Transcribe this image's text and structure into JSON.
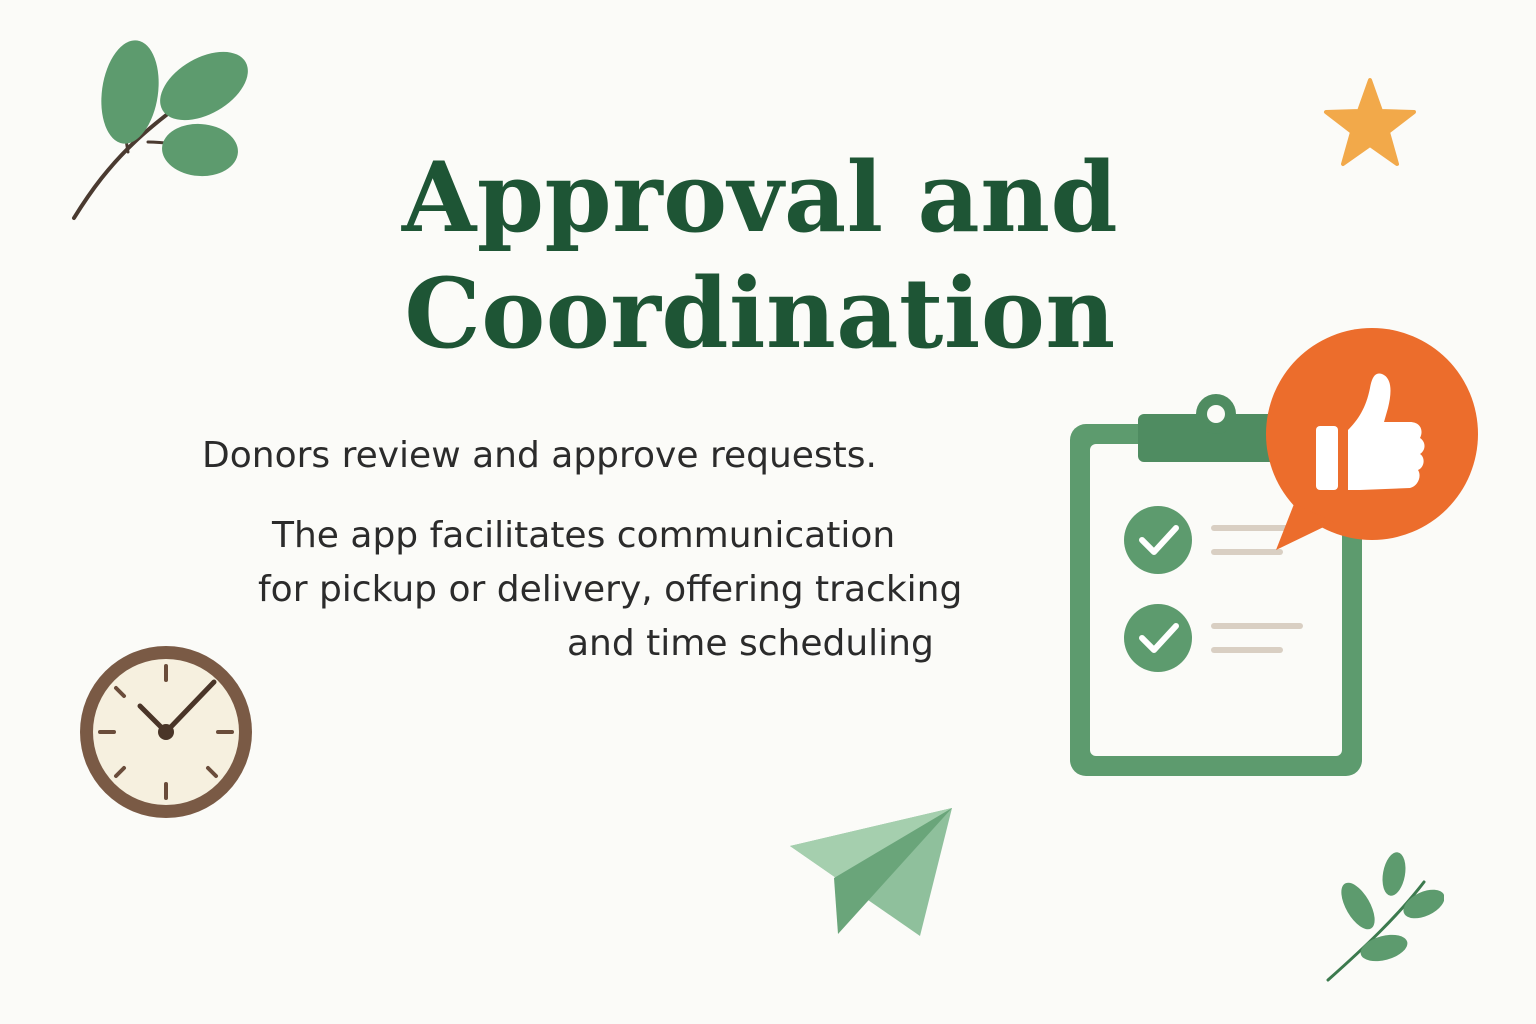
{
  "title": {
    "line1": "Approval and",
    "line2": "Coordination"
  },
  "subtitle": "Donors review and approve requests.",
  "description": {
    "line1": "The app facilitates communication",
    "line2": "for pickup or delivery, offering tracking",
    "line3": "and time scheduling"
  },
  "icons": {
    "top_left": "leaf-branch-icon",
    "top_right": "star-icon",
    "left_middle": "clock-icon",
    "bottom_center": "paper-plane-icon",
    "bottom_right": "leaf-sprig-icon",
    "right_main": "clipboard-checklist-icon",
    "right_badge": "thumbs-up-icon"
  },
  "colors": {
    "title": "#1e5535",
    "green": "#5d9b6e",
    "orange": "#ec6d2c",
    "star": "#f2a94a",
    "brown": "#7a5a45"
  }
}
